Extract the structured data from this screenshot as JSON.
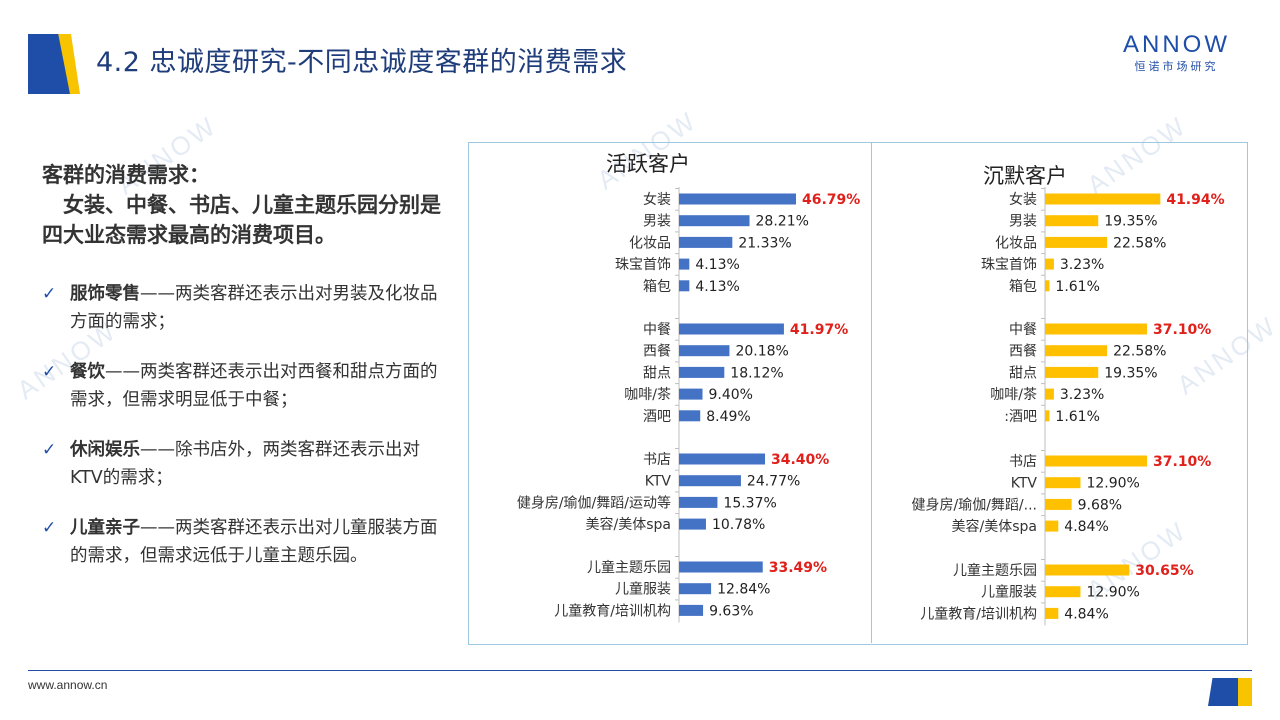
{
  "header": {
    "title": "4.2 忠诚度研究-不同忠诚度客群的消费需求"
  },
  "logo": {
    "main": "ANNOW",
    "sub": "恒诺市场研究"
  },
  "watermark": "ANNOW",
  "summary": {
    "heading": "客群的消费需求：\n　女装、中餐、书店、儿童主题乐园分别是四大业态需求最高的消费项目。",
    "bullets": [
      {
        "title": "服饰零售",
        "text": "——两类客群还表示出对男装及化妆品方面的需求；"
      },
      {
        "title": "餐饮",
        "text": "——两类客群还表示出对西餐和甜点方面的需求，但需求明显低于中餐；"
      },
      {
        "title": "休闲娱乐",
        "text": "——除书店外，两类客群还表示出对KTV的需求；"
      },
      {
        "title": "儿童亲子",
        "text": "——两类客群还表示出对儿童服装方面的需求，但需求远低于儿童主题乐园。"
      }
    ]
  },
  "footer": {
    "url": "www.annow.cn"
  },
  "chart_data": [
    {
      "type": "bar",
      "title": "活跃客户",
      "color": "#4472c4",
      "highlight_color": "#e0201b",
      "groups": [
        {
          "categories": [
            "女装",
            "男装",
            "化妆品",
            "珠宝首饰",
            "箱包"
          ],
          "values": [
            46.79,
            28.21,
            21.33,
            4.13,
            4.13
          ],
          "labels": [
            "46.79%",
            "28.21%",
            "21.33%",
            "4.13%",
            "4.13%"
          ],
          "highlight": [
            true,
            false,
            false,
            false,
            false
          ]
        },
        {
          "categories": [
            "中餐",
            "西餐",
            "甜点",
            "咖啡/茶",
            "酒吧"
          ],
          "values": [
            41.97,
            20.18,
            18.12,
            9.4,
            8.49
          ],
          "labels": [
            "41.97%",
            "20.18%",
            "18.12%",
            "9.40%",
            "8.49%"
          ],
          "highlight": [
            true,
            false,
            false,
            false,
            false
          ]
        },
        {
          "categories": [
            "书店",
            "KTV",
            "健身房/瑜伽/舞蹈/运动等",
            "美容/美体spa"
          ],
          "values": [
            34.4,
            24.77,
            15.37,
            10.78
          ],
          "labels": [
            "34.40%",
            "24.77%",
            "15.37%",
            "10.78%"
          ],
          "highlight": [
            true,
            false,
            false,
            false
          ]
        },
        {
          "categories": [
            "儿童主题乐园",
            "儿童服装",
            "儿童教育/培训机构"
          ],
          "values": [
            33.49,
            12.84,
            9.63
          ],
          "labels": [
            "33.49%",
            "12.84%",
            "9.63%"
          ],
          "highlight": [
            true,
            false,
            false
          ]
        }
      ]
    },
    {
      "type": "bar",
      "title": "沉默客户",
      "color": "#ffc000",
      "highlight_color": "#e0201b",
      "groups": [
        {
          "categories": [
            "女装",
            "男装",
            "化妆品",
            "珠宝首饰",
            "箱包"
          ],
          "values": [
            41.94,
            19.35,
            22.58,
            3.23,
            1.61
          ],
          "labels": [
            "41.94%",
            "19.35%",
            "22.58%",
            "3.23%",
            "1.61%"
          ],
          "highlight": [
            true,
            false,
            false,
            false,
            false
          ]
        },
        {
          "categories": [
            "中餐",
            "西餐",
            "甜点",
            "咖啡/茶",
            ":酒吧"
          ],
          "values": [
            37.1,
            22.58,
            19.35,
            3.23,
            1.61
          ],
          "labels": [
            "37.10%",
            "22.58%",
            "19.35%",
            "3.23%",
            "1.61%"
          ],
          "highlight": [
            true,
            false,
            false,
            false,
            false
          ]
        },
        {
          "categories": [
            "书店",
            "KTV",
            "健身房/瑜伽/舞蹈/...",
            "美容/美体spa"
          ],
          "values": [
            37.1,
            12.9,
            9.68,
            4.84
          ],
          "labels": [
            "37.10%",
            "12.90%",
            "9.68%",
            "4.84%"
          ],
          "highlight": [
            true,
            false,
            false,
            false
          ]
        },
        {
          "categories": [
            "儿童主题乐园",
            "儿童服装",
            "儿童教育/培训机构"
          ],
          "values": [
            30.65,
            12.9,
            4.84
          ],
          "labels": [
            "30.65%",
            "12.90%",
            "4.84%"
          ],
          "highlight": [
            true,
            false,
            false
          ]
        }
      ]
    }
  ]
}
